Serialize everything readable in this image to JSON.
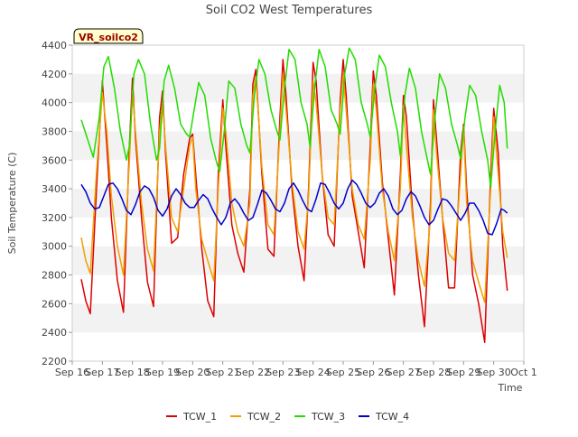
{
  "chart_data": {
    "type": "line",
    "title": "Soil CO2 West Temperatures",
    "xlabel": "Time",
    "ylabel": "Soil Temperature (C)",
    "annotation": "VR_soilco2",
    "ylim": [
      2200,
      4400
    ],
    "yticks": [
      2200,
      2400,
      2600,
      2800,
      3000,
      3200,
      3400,
      3600,
      3800,
      4000,
      4200,
      4400
    ],
    "xlim": [
      0,
      15
    ],
    "xtick_labels": [
      "Sep 16",
      "Sep 17",
      "Sep 18",
      "Sep 19",
      "Sep 20",
      "Sep 21",
      "Sep 22",
      "Sep 23",
      "Sep 24",
      "Sep 25",
      "Sep 26",
      "Sep 27",
      "Sep 28",
      "Sep 29",
      "Sep 30",
      "Oct 1"
    ],
    "grid": "horizontal bands",
    "legend_position": "bottom",
    "series": [
      {
        "name": "TCW_1",
        "color": "#dd0000",
        "x": [
          0.3,
          0.45,
          0.6,
          0.8,
          1.0,
          1.15,
          1.3,
          1.5,
          1.7,
          1.9,
          2.0,
          2.1,
          2.3,
          2.5,
          2.7,
          2.9,
          3.0,
          3.1,
          3.3,
          3.5,
          3.7,
          3.9,
          4.0,
          4.1,
          4.3,
          4.5,
          4.7,
          4.85,
          5.0,
          5.1,
          5.3,
          5.5,
          5.7,
          5.9,
          6.0,
          6.1,
          6.3,
          6.5,
          6.7,
          6.9,
          7.0,
          7.1,
          7.3,
          7.5,
          7.7,
          7.85,
          8.0,
          8.1,
          8.3,
          8.5,
          8.7,
          8.9,
          9.0,
          9.1,
          9.3,
          9.5,
          9.7,
          9.9,
          10.0,
          10.1,
          10.3,
          10.5,
          10.7,
          10.9,
          11.0,
          11.1,
          11.3,
          11.5,
          11.7,
          11.9,
          12.0,
          12.1,
          12.3,
          12.5,
          12.7,
          12.9,
          13.0,
          13.1,
          13.3,
          13.5,
          13.7,
          13.9,
          14.0,
          14.15,
          14.3,
          14.45
        ],
        "values": [
          2770,
          2620,
          2530,
          3380,
          4150,
          3700,
          3200,
          2760,
          2540,
          3700,
          4170,
          3750,
          3200,
          2750,
          2580,
          3900,
          4080,
          3650,
          3020,
          3060,
          3500,
          3750,
          3780,
          3500,
          2990,
          2620,
          2510,
          3500,
          4020,
          3700,
          3150,
          2950,
          2820,
          3400,
          4130,
          4230,
          3500,
          2980,
          2930,
          3900,
          4300,
          4050,
          3400,
          3000,
          2760,
          3400,
          4280,
          4150,
          3500,
          3080,
          3000,
          4020,
          4300,
          4050,
          3350,
          3100,
          2850,
          3700,
          4220,
          4050,
          3450,
          3050,
          2660,
          3500,
          4050,
          3900,
          3250,
          2800,
          2440,
          3300,
          4020,
          3750,
          3200,
          2710,
          2710,
          3650,
          3850,
          3400,
          2800,
          2600,
          2330,
          3500,
          3960,
          3650,
          3000,
          2690
        ]
      },
      {
        "name": "TCW_2",
        "color": "#f0a000",
        "x": [
          0.3,
          0.45,
          0.6,
          0.8,
          1.0,
          1.15,
          1.3,
          1.5,
          1.7,
          1.9,
          2.0,
          2.1,
          2.3,
          2.5,
          2.7,
          2.9,
          3.0,
          3.1,
          3.3,
          3.5,
          3.7,
          3.9,
          4.0,
          4.1,
          4.3,
          4.5,
          4.7,
          4.85,
          5.0,
          5.1,
          5.3,
          5.5,
          5.7,
          5.9,
          6.0,
          6.1,
          6.3,
          6.5,
          6.7,
          6.9,
          7.0,
          7.1,
          7.3,
          7.5,
          7.7,
          7.85,
          8.0,
          8.1,
          8.3,
          8.5,
          8.7,
          8.9,
          9.0,
          9.1,
          9.3,
          9.5,
          9.7,
          9.9,
          10.0,
          10.1,
          10.3,
          10.5,
          10.7,
          10.9,
          11.0,
          11.1,
          11.3,
          11.5,
          11.7,
          11.9,
          12.0,
          12.1,
          12.3,
          12.5,
          12.7,
          12.9,
          13.0,
          13.1,
          13.3,
          13.5,
          13.7,
          13.9,
          14.0,
          14.15,
          14.3,
          14.45
        ],
        "values": [
          3060,
          2900,
          2810,
          3500,
          4070,
          3800,
          3350,
          3000,
          2800,
          3600,
          4080,
          3800,
          3300,
          2980,
          2830,
          3800,
          4000,
          3700,
          3200,
          3100,
          3400,
          3700,
          3760,
          3400,
          3050,
          2900,
          2760,
          3400,
          3960,
          3800,
          3300,
          3100,
          3000,
          3300,
          4050,
          4180,
          3550,
          3150,
          3080,
          3800,
          4200,
          3950,
          3450,
          3100,
          2980,
          3350,
          4150,
          4000,
          3500,
          3200,
          3150,
          3950,
          4200,
          3950,
          3400,
          3150,
          3050,
          3600,
          4130,
          3950,
          3400,
          3100,
          2900,
          3400,
          3980,
          3700,
          3200,
          2900,
          2720,
          3200,
          3950,
          3650,
          3200,
          2950,
          2900,
          3500,
          3830,
          3300,
          2900,
          2750,
          2610,
          3400,
          3900,
          3500,
          3100,
          2920
        ]
      },
      {
        "name": "TCW_3",
        "color": "#22dd00",
        "x": [
          0.3,
          0.5,
          0.7,
          0.9,
          1.05,
          1.2,
          1.4,
          1.6,
          1.8,
          1.9,
          2.05,
          2.2,
          2.4,
          2.6,
          2.8,
          2.9,
          3.05,
          3.2,
          3.4,
          3.6,
          3.8,
          3.9,
          4.05,
          4.2,
          4.4,
          4.6,
          4.8,
          4.9,
          5.05,
          5.2,
          5.4,
          5.6,
          5.8,
          5.9,
          6.05,
          6.2,
          6.4,
          6.6,
          6.8,
          6.9,
          7.05,
          7.2,
          7.4,
          7.6,
          7.8,
          7.9,
          8.05,
          8.2,
          8.4,
          8.6,
          8.8,
          8.9,
          9.05,
          9.2,
          9.4,
          9.6,
          9.8,
          9.9,
          10.05,
          10.2,
          10.4,
          10.6,
          10.8,
          10.9,
          11.05,
          11.2,
          11.4,
          11.6,
          11.8,
          11.9,
          12.05,
          12.2,
          12.4,
          12.6,
          12.8,
          12.9,
          13.05,
          13.2,
          13.4,
          13.6,
          13.8,
          13.9,
          14.05,
          14.2,
          14.35,
          14.45
        ],
        "values": [
          3880,
          3750,
          3620,
          3900,
          4250,
          4320,
          4100,
          3800,
          3600,
          3700,
          4200,
          4300,
          4200,
          3850,
          3600,
          3680,
          4150,
          4260,
          4100,
          3850,
          3780,
          3760,
          3950,
          4140,
          4050,
          3750,
          3580,
          3520,
          3800,
          4150,
          4100,
          3850,
          3700,
          3650,
          4050,
          4300,
          4200,
          3950,
          3800,
          3740,
          4100,
          4370,
          4300,
          4000,
          3850,
          3690,
          4100,
          4370,
          4250,
          3950,
          3850,
          3780,
          4200,
          4380,
          4300,
          4000,
          3850,
          3760,
          4100,
          4330,
          4250,
          4000,
          3800,
          3630,
          4050,
          4240,
          4100,
          3800,
          3600,
          3500,
          3900,
          4200,
          4100,
          3850,
          3700,
          3610,
          3900,
          4120,
          4050,
          3800,
          3600,
          3410,
          3800,
          4120,
          4000,
          3680
        ]
      },
      {
        "name": "TCW_4",
        "color": "#0000cc",
        "x": [
          0.3,
          0.45,
          0.6,
          0.75,
          0.9,
          1.05,
          1.2,
          1.35,
          1.5,
          1.65,
          1.8,
          1.95,
          2.1,
          2.25,
          2.4,
          2.55,
          2.7,
          2.85,
          3.0,
          3.15,
          3.3,
          3.45,
          3.6,
          3.75,
          3.9,
          4.05,
          4.2,
          4.35,
          4.5,
          4.65,
          4.8,
          4.95,
          5.1,
          5.25,
          5.4,
          5.55,
          5.7,
          5.85,
          6.0,
          6.15,
          6.3,
          6.45,
          6.6,
          6.75,
          6.9,
          7.05,
          7.2,
          7.35,
          7.5,
          7.65,
          7.8,
          7.95,
          8.1,
          8.25,
          8.4,
          8.55,
          8.7,
          8.85,
          9.0,
          9.15,
          9.3,
          9.45,
          9.6,
          9.75,
          9.9,
          10.05,
          10.2,
          10.35,
          10.5,
          10.65,
          10.8,
          10.95,
          11.1,
          11.25,
          11.4,
          11.55,
          11.7,
          11.85,
          12.0,
          12.15,
          12.3,
          12.45,
          12.6,
          12.75,
          12.9,
          13.05,
          13.2,
          13.35,
          13.5,
          13.65,
          13.8,
          13.95,
          14.1,
          14.25,
          14.35,
          14.45
        ],
        "values": [
          3430,
          3380,
          3300,
          3260,
          3270,
          3350,
          3430,
          3440,
          3400,
          3330,
          3250,
          3220,
          3290,
          3380,
          3420,
          3400,
          3340,
          3250,
          3210,
          3260,
          3350,
          3400,
          3360,
          3300,
          3270,
          3270,
          3320,
          3360,
          3330,
          3260,
          3200,
          3150,
          3200,
          3300,
          3330,
          3290,
          3230,
          3180,
          3200,
          3290,
          3390,
          3370,
          3320,
          3260,
          3240,
          3300,
          3400,
          3440,
          3390,
          3320,
          3260,
          3240,
          3330,
          3440,
          3430,
          3370,
          3300,
          3260,
          3300,
          3400,
          3460,
          3430,
          3370,
          3300,
          3270,
          3300,
          3370,
          3400,
          3350,
          3260,
          3220,
          3250,
          3330,
          3380,
          3350,
          3280,
          3200,
          3150,
          3180,
          3260,
          3330,
          3320,
          3280,
          3230,
          3180,
          3230,
          3300,
          3300,
          3250,
          3180,
          3090,
          3080,
          3160,
          3260,
          3250,
          3230
        ]
      }
    ]
  }
}
